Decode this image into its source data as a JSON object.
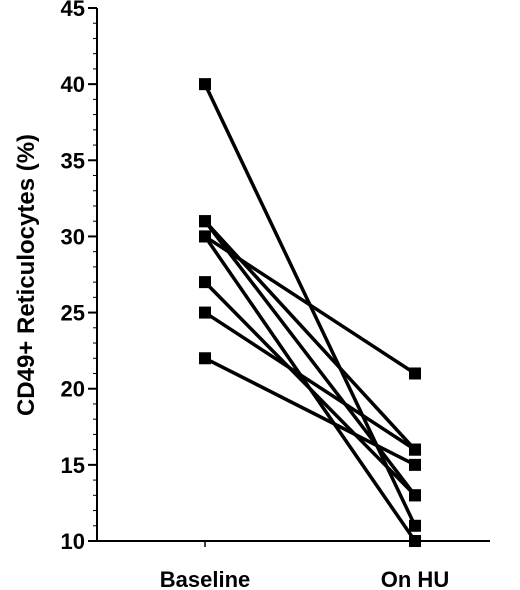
{
  "chart_data": {
    "type": "line",
    "title": "",
    "xlabel": "",
    "ylabel": "CD49+ Reticulocytes (%)",
    "categories": [
      "Baseline",
      "On HU"
    ],
    "ylim": [
      10,
      45
    ],
    "yticks": [
      10,
      15,
      20,
      25,
      30,
      35,
      40,
      45
    ],
    "grid": false,
    "legend": "none",
    "marker": "square",
    "color": "#000000",
    "series": [
      {
        "values": [
          40,
          11
        ]
      },
      {
        "values": [
          31,
          16
        ]
      },
      {
        "values": [
          31,
          13
        ]
      },
      {
        "values": [
          30,
          21
        ]
      },
      {
        "values": [
          30,
          10
        ]
      },
      {
        "values": [
          27,
          13
        ]
      },
      {
        "values": [
          25,
          16
        ]
      },
      {
        "values": [
          22,
          15
        ]
      }
    ]
  }
}
